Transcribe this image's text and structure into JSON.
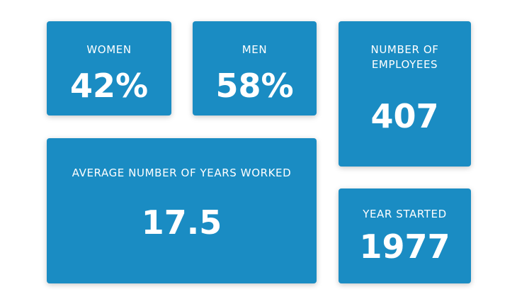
{
  "stats": {
    "women": {
      "label": "WOMEN",
      "value": "42%"
    },
    "men": {
      "label": "MEN",
      "value": "58%"
    },
    "employees": {
      "label_line1": "NUMBER OF",
      "label_line2": "EMPLOYEES",
      "value": "407"
    },
    "years_worked": {
      "label": "AVERAGE NUMBER OF YEARS WORKED",
      "value": "17.5"
    },
    "year_started": {
      "label": "YEAR STARTED",
      "value": "1977"
    }
  },
  "colors": {
    "tile_background": "#1a8cc3",
    "text": "#ffffff",
    "page_background": "#ffffff"
  }
}
